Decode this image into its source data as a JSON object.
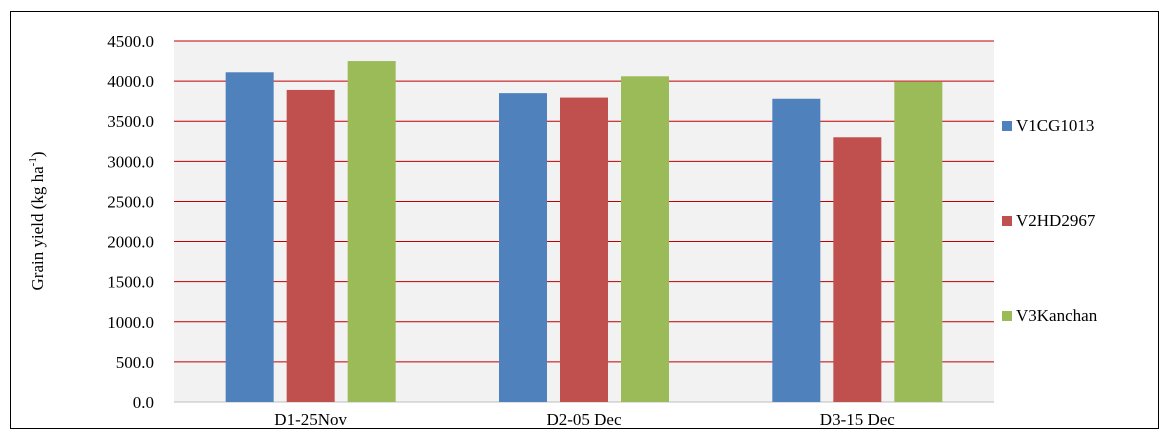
{
  "chart_data": {
    "type": "bar",
    "categories": [
      "D1-25Nov",
      "D2-05 Dec",
      "D3-15 Dec"
    ],
    "series": [
      {
        "name": "V1CG1013",
        "color": "#4F81BD",
        "values": [
          4110,
          3850,
          3780
        ]
      },
      {
        "name": "V2HD2967",
        "color": "#C0504D",
        "values": [
          3890,
          3795,
          3300
        ]
      },
      {
        "name": "V3Kanchan",
        "color": "#9BBB59",
        "values": [
          4250,
          4060,
          3990
        ]
      }
    ],
    "yticks": [
      "0.0",
      "500.0",
      "1000.0",
      "1500.0",
      "2000.0",
      "2500.0",
      "3000.0",
      "3500.0",
      "4000.0",
      "4500.0"
    ],
    "ylim": [
      0,
      4500
    ],
    "ylabel": "Grain yield (kg ha",
    "ylabel_sup": "-1",
    "ylabel_close": ")",
    "xlabel": "",
    "title": "",
    "grid": true,
    "grid_color": "#C00000",
    "plot_background": "#F2F2F2",
    "legend_position": "right"
  }
}
